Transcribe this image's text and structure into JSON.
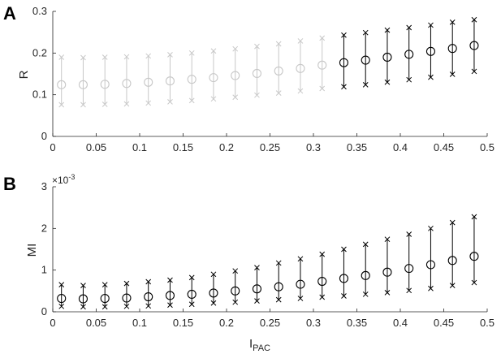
{
  "chart_data": [
    {
      "type": "errorbar",
      "panel": "A",
      "ylabel": "R",
      "xlabel": "",
      "xlim": [
        0,
        0.5
      ],
      "ylim": [
        0,
        0.3
      ],
      "xticks": [
        "0",
        "0.05",
        "0.1",
        "0.15",
        "0.2",
        "0.25",
        "0.3",
        "0.35",
        "0.4",
        "0.45",
        "0.5"
      ],
      "yticks": [
        "0",
        "0.1",
        "0.2",
        "0.3"
      ],
      "grid": false,
      "colors": {
        "faded": "#c8c8c8",
        "highlight": "#000000"
      },
      "highlight_from_index": 13,
      "x": [
        0.01,
        0.035,
        0.06,
        0.085,
        0.11,
        0.135,
        0.16,
        0.185,
        0.21,
        0.235,
        0.26,
        0.285,
        0.31,
        0.335,
        0.36,
        0.385,
        0.41,
        0.435,
        0.46,
        0.485
      ],
      "mean": [
        0.124,
        0.124,
        0.125,
        0.127,
        0.13,
        0.133,
        0.137,
        0.141,
        0.146,
        0.151,
        0.157,
        0.163,
        0.171,
        0.177,
        0.183,
        0.19,
        0.197,
        0.204,
        0.211,
        0.218
      ],
      "lower": [
        0.076,
        0.076,
        0.077,
        0.078,
        0.08,
        0.083,
        0.086,
        0.09,
        0.094,
        0.099,
        0.104,
        0.109,
        0.115,
        0.119,
        0.124,
        0.13,
        0.136,
        0.142,
        0.149,
        0.156
      ],
      "upper": [
        0.19,
        0.189,
        0.19,
        0.191,
        0.193,
        0.196,
        0.2,
        0.205,
        0.21,
        0.216,
        0.222,
        0.229,
        0.236,
        0.243,
        0.249,
        0.255,
        0.261,
        0.267,
        0.274,
        0.28
      ]
    },
    {
      "type": "errorbar",
      "panel": "B",
      "ylabel": "MI",
      "xlabel": "I",
      "xlabel_sub": "PAC",
      "exponent_base": "×10",
      "exponent_power": "-3",
      "xlim": [
        0,
        0.5
      ],
      "ylim": [
        0,
        3
      ],
      "xticks": [
        "0",
        "0.05",
        "0.1",
        "0.15",
        "0.2",
        "0.25",
        "0.3",
        "0.35",
        "0.4",
        "0.45",
        "0.5"
      ],
      "yticks": [
        "0",
        "1",
        "2",
        "3"
      ],
      "grid": false,
      "colors": {
        "highlight": "#000000"
      },
      "x": [
        0.01,
        0.035,
        0.06,
        0.085,
        0.11,
        0.135,
        0.16,
        0.185,
        0.21,
        0.235,
        0.26,
        0.285,
        0.31,
        0.335,
        0.36,
        0.385,
        0.41,
        0.435,
        0.46,
        0.485
      ],
      "mean": [
        0.32,
        0.31,
        0.32,
        0.33,
        0.36,
        0.39,
        0.42,
        0.45,
        0.5,
        0.55,
        0.6,
        0.66,
        0.73,
        0.8,
        0.87,
        0.95,
        1.04,
        1.13,
        1.23,
        1.33
      ],
      "lower": [
        0.13,
        0.12,
        0.12,
        0.13,
        0.14,
        0.16,
        0.18,
        0.21,
        0.23,
        0.26,
        0.29,
        0.32,
        0.35,
        0.38,
        0.42,
        0.46,
        0.51,
        0.56,
        0.63,
        0.7
      ],
      "upper": [
        0.65,
        0.63,
        0.65,
        0.68,
        0.72,
        0.76,
        0.82,
        0.9,
        0.98,
        1.06,
        1.17,
        1.27,
        1.38,
        1.5,
        1.62,
        1.74,
        1.86,
        2.0,
        2.14,
        2.28
      ]
    }
  ]
}
